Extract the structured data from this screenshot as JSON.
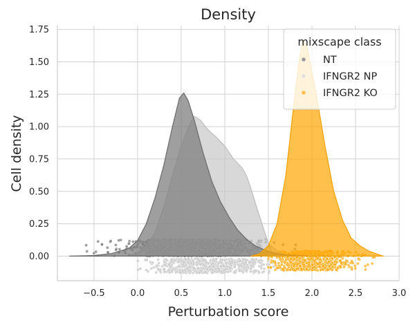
{
  "chart_data": {
    "type": "area",
    "title": "Density",
    "xlabel": "Perturbation score",
    "ylabel": "Cell density",
    "xlim": [
      -0.92,
      3.0
    ],
    "ylim": [
      -0.19,
      1.78
    ],
    "xticks": [
      -0.5,
      0.0,
      0.5,
      1.0,
      1.5,
      2.0,
      2.5,
      3.0
    ],
    "xtick_labels": [
      "−0.5",
      "0.0",
      "0.5",
      "1.0",
      "1.5",
      "2.0",
      "2.5",
      "3.0"
    ],
    "yticks": [
      0.0,
      0.25,
      0.5,
      0.75,
      1.0,
      1.25,
      1.5,
      1.75
    ],
    "ytick_labels": [
      "0.00",
      "0.25",
      "0.50",
      "0.75",
      "1.00",
      "1.25",
      "1.50",
      "1.75"
    ],
    "grid": true,
    "legend": {
      "title": "mixscape class",
      "placement": "top-right",
      "entries": [
        "NT",
        "IFNGR2 NP",
        "IFNGR2 KO"
      ]
    },
    "series": [
      {
        "name": "NT",
        "color": "#7f7f7f",
        "density": [
          [
            -0.78,
            0
          ],
          [
            -0.5,
            0.005
          ],
          [
            -0.3,
            0.02
          ],
          [
            -0.1,
            0.06
          ],
          [
            0.0,
            0.12
          ],
          [
            0.1,
            0.25
          ],
          [
            0.2,
            0.45
          ],
          [
            0.3,
            0.7
          ],
          [
            0.4,
            1.0
          ],
          [
            0.48,
            1.22
          ],
          [
            0.53,
            1.26
          ],
          [
            0.58,
            1.2
          ],
          [
            0.65,
            1.05
          ],
          [
            0.75,
            0.8
          ],
          [
            0.85,
            0.58
          ],
          [
            0.95,
            0.42
          ],
          [
            1.05,
            0.3
          ],
          [
            1.15,
            0.2
          ],
          [
            1.25,
            0.13
          ],
          [
            1.35,
            0.08
          ],
          [
            1.45,
            0.05
          ],
          [
            1.55,
            0.025
          ],
          [
            1.7,
            0.01
          ],
          [
            1.85,
            0.005
          ],
          [
            2.0,
            0
          ]
        ],
        "points_y_range": [
          0.0,
          0.13
        ]
      },
      {
        "name": "IFNGR2 NP",
        "color": "#c8c8c8",
        "density": [
          [
            -0.1,
            0
          ],
          [
            0.0,
            0.03
          ],
          [
            0.1,
            0.08
          ],
          [
            0.2,
            0.18
          ],
          [
            0.3,
            0.38
          ],
          [
            0.4,
            0.62
          ],
          [
            0.5,
            0.85
          ],
          [
            0.6,
            1.02
          ],
          [
            0.65,
            1.08
          ],
          [
            0.72,
            1.05
          ],
          [
            0.8,
            0.98
          ],
          [
            0.9,
            0.92
          ],
          [
            1.0,
            0.85
          ],
          [
            1.1,
            0.75
          ],
          [
            1.2,
            0.68
          ],
          [
            1.25,
            0.62
          ],
          [
            1.3,
            0.52
          ],
          [
            1.38,
            0.35
          ],
          [
            1.45,
            0.2
          ],
          [
            1.5,
            0.1
          ],
          [
            1.6,
            0.04
          ],
          [
            1.7,
            0
          ]
        ],
        "points_y_range": [
          -0.13,
          -0.02
        ]
      },
      {
        "name": "IFNGR2 KO",
        "color": "#ffa500",
        "density": [
          [
            1.3,
            0
          ],
          [
            1.4,
            0.02
          ],
          [
            1.5,
            0.08
          ],
          [
            1.6,
            0.25
          ],
          [
            1.7,
            0.62
          ],
          [
            1.78,
            1.1
          ],
          [
            1.85,
            1.5
          ],
          [
            1.9,
            1.67
          ],
          [
            1.95,
            1.6
          ],
          [
            2.05,
            1.25
          ],
          [
            2.15,
            0.85
          ],
          [
            2.25,
            0.5
          ],
          [
            2.35,
            0.28
          ],
          [
            2.45,
            0.14
          ],
          [
            2.55,
            0.08
          ],
          [
            2.65,
            0.04
          ],
          [
            2.75,
            0.015
          ],
          [
            2.82,
            0
          ]
        ],
        "points_y_range": [
          -0.11,
          0.04
        ]
      }
    ]
  }
}
